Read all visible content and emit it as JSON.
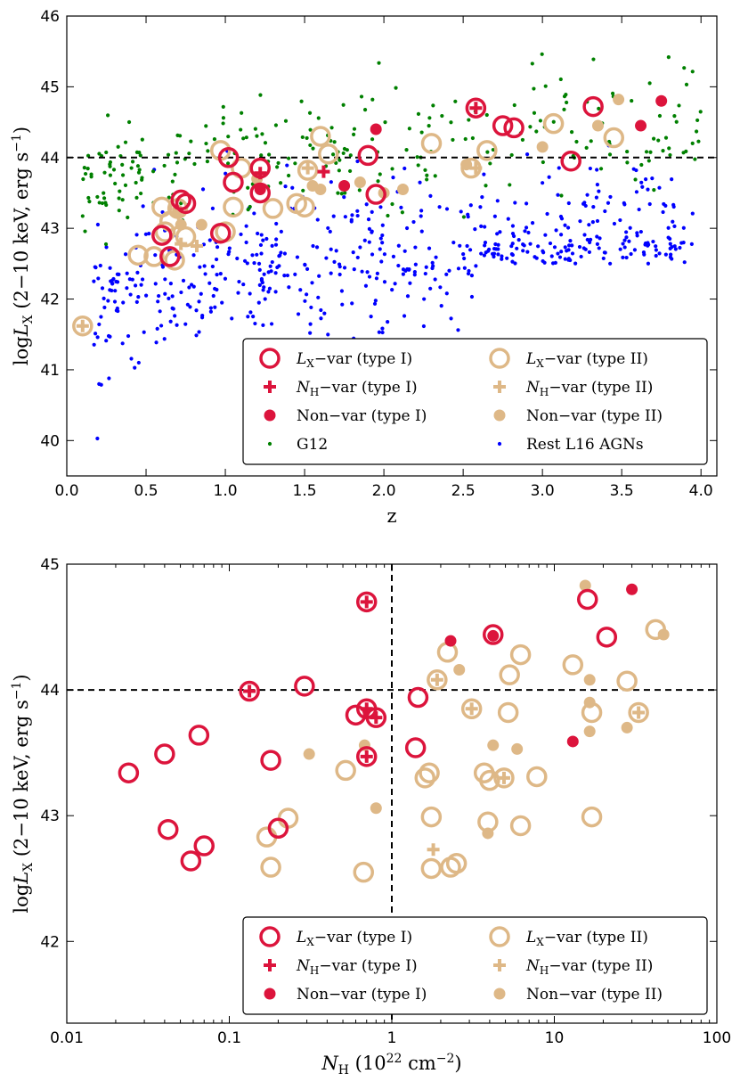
{
  "colors": {
    "type1": "#dc143c",
    "type2": "#deb887",
    "g12": "#008000",
    "rest": "#0000ff",
    "axis": "#000000"
  },
  "chart_data": [
    {
      "type": "scatter",
      "xlabel": "z",
      "ylabel_main": "log",
      "ylabel_var": "L",
      "ylabel_sub": "X",
      "ylabel_unit": "(2−10 keV, erg s",
      "ylabel_exp": "−1",
      "ylabel_close": ")",
      "xlim": [
        0.0,
        4.1
      ],
      "ylim": [
        39.5,
        46.0
      ],
      "xticks": [
        0.0,
        0.5,
        1.0,
        1.5,
        2.0,
        2.5,
        3.0,
        3.5,
        4.0
      ],
      "xtick_labels": [
        "0.0",
        "0.5",
        "1.0",
        "1.5",
        "2.0",
        "2.5",
        "3.0",
        "3.5",
        "4.0"
      ],
      "yticks": [
        40,
        41,
        42,
        43,
        44,
        45,
        46
      ],
      "ytick_labels": [
        "40",
        "41",
        "42",
        "43",
        "44",
        "45",
        "46"
      ],
      "hline": 44.0,
      "legend": [
        {
          "marker": "ring",
          "group": "type1",
          "pre": "",
          "var": "L",
          "sub": "X",
          "post": "−var (type I)"
        },
        {
          "marker": "ring",
          "group": "type2",
          "pre": "",
          "var": "L",
          "sub": "X",
          "post": "−var (type II)"
        },
        {
          "marker": "plus",
          "group": "type1",
          "pre": "",
          "var": "N",
          "sub": "H",
          "post": "−var (type I)"
        },
        {
          "marker": "plus",
          "group": "type2",
          "pre": "",
          "var": "N",
          "sub": "H",
          "post": "−var (type II)"
        },
        {
          "marker": "dot",
          "group": "type1",
          "pre": "Non−var (type I)",
          "var": "",
          "sub": "",
          "post": ""
        },
        {
          "marker": "dot",
          "group": "type2",
          "pre": "Non−var (type II)",
          "var": "",
          "sub": "",
          "post": ""
        },
        {
          "marker": "small",
          "group": "g12",
          "pre": "G12",
          "var": "",
          "sub": "",
          "post": ""
        },
        {
          "marker": "small",
          "group": "rest",
          "pre": "Rest L16 AGNs",
          "var": "",
          "sub": "",
          "post": ""
        }
      ],
      "series": {
        "type1_ring": [
          [
            0.6,
            42.9
          ],
          [
            0.65,
            42.6
          ],
          [
            0.72,
            43.4
          ],
          [
            0.75,
            43.35
          ],
          [
            0.97,
            42.93
          ],
          [
            1.02,
            44.0
          ],
          [
            1.05,
            43.65
          ],
          [
            1.22,
            43.5
          ],
          [
            1.22,
            43.85
          ],
          [
            1.9,
            44.03
          ],
          [
            1.95,
            43.48
          ],
          [
            2.58,
            44.7
          ],
          [
            2.75,
            44.45
          ],
          [
            2.82,
            44.42
          ],
          [
            3.18,
            43.95
          ],
          [
            3.32,
            44.72
          ]
        ],
        "type1_plus": [
          [
            1.22,
            43.78
          ],
          [
            1.62,
            43.8
          ],
          [
            2.58,
            44.7
          ]
        ],
        "type1_dot": [
          [
            1.22,
            43.55
          ],
          [
            1.75,
            43.6
          ],
          [
            1.95,
            44.4
          ],
          [
            3.62,
            44.45
          ],
          [
            3.75,
            44.8
          ]
        ],
        "type2_ring": [
          [
            0.1,
            41.62
          ],
          [
            0.45,
            42.62
          ],
          [
            0.55,
            42.6
          ],
          [
            0.6,
            43.3
          ],
          [
            0.62,
            42.95
          ],
          [
            0.65,
            43.1
          ],
          [
            0.68,
            42.55
          ],
          [
            0.7,
            43.28
          ],
          [
            0.75,
            42.88
          ],
          [
            0.97,
            44.1
          ],
          [
            1.0,
            42.95
          ],
          [
            1.05,
            43.3
          ],
          [
            1.1,
            43.85
          ],
          [
            1.3,
            43.28
          ],
          [
            1.45,
            43.35
          ],
          [
            1.5,
            43.3
          ],
          [
            1.52,
            43.82
          ],
          [
            1.6,
            44.3
          ],
          [
            1.65,
            44.05
          ],
          [
            2.3,
            44.2
          ],
          [
            2.55,
            43.85
          ],
          [
            2.65,
            44.1
          ],
          [
            3.07,
            44.48
          ],
          [
            3.45,
            44.28
          ]
        ],
        "type2_plus": [
          [
            0.1,
            41.62
          ],
          [
            0.72,
            42.78
          ],
          [
            0.82,
            42.75
          ],
          [
            1.52,
            43.85
          ],
          [
            2.58,
            43.85
          ]
        ],
        "type2_dot": [
          [
            0.7,
            43.25
          ],
          [
            0.72,
            43.05
          ],
          [
            0.85,
            43.05
          ],
          [
            1.2,
            43.7
          ],
          [
            1.55,
            43.6
          ],
          [
            1.6,
            43.55
          ],
          [
            1.85,
            43.65
          ],
          [
            2.0,
            43.5
          ],
          [
            2.12,
            43.55
          ],
          [
            2.52,
            43.9
          ],
          [
            3.0,
            44.15
          ],
          [
            3.35,
            44.45
          ],
          [
            3.48,
            44.82
          ]
        ],
        "g12_count": 260,
        "rest_count": 560
      }
    },
    {
      "type": "scatter",
      "xlabel_var": "N",
      "xlabel_sub": "H",
      "xlabel_unit": "(10",
      "xlabel_exp": "22",
      "xlabel_unit2": " cm",
      "xlabel_exp2": "−2",
      "xlabel_close": ")",
      "ylabel_main": "log",
      "ylabel_var": "L",
      "ylabel_sub": "X",
      "ylabel_unit": "(2−10 keV, erg s",
      "ylabel_exp": "−1",
      "ylabel_close": ")",
      "xscale": "log",
      "xlim": [
        0.01,
        100
      ],
      "ylim": [
        41.35,
        45.0
      ],
      "xticks": [
        0.01,
        0.1,
        1,
        10,
        100
      ],
      "xtick_labels": [
        "0.01",
        "0.1",
        "1",
        "10",
        "100"
      ],
      "yticks": [
        42,
        43,
        44,
        45
      ],
      "ytick_labels": [
        "42",
        "43",
        "44",
        "45"
      ],
      "hline": 44.0,
      "vline": 1.0,
      "legend": [
        {
          "marker": "ring",
          "group": "type1",
          "pre": "",
          "var": "L",
          "sub": "X",
          "post": "−var (type I)"
        },
        {
          "marker": "ring",
          "group": "type2",
          "pre": "",
          "var": "L",
          "sub": "X",
          "post": "−var (type II)"
        },
        {
          "marker": "plus",
          "group": "type1",
          "pre": "",
          "var": "N",
          "sub": "H",
          "post": "−var (type I)"
        },
        {
          "marker": "plus",
          "group": "type2",
          "pre": "",
          "var": "N",
          "sub": "H",
          "post": "−var (type II)"
        },
        {
          "marker": "dot",
          "group": "type1",
          "pre": "Non−var (type I)",
          "var": "",
          "sub": "",
          "post": ""
        },
        {
          "marker": "dot",
          "group": "type2",
          "pre": "Non−var (type II)",
          "var": "",
          "sub": "",
          "post": ""
        }
      ],
      "series": {
        "type1_ring": [
          [
            0.024,
            43.34
          ],
          [
            0.04,
            43.49
          ],
          [
            0.042,
            42.89
          ],
          [
            0.058,
            42.64
          ],
          [
            0.065,
            43.64
          ],
          [
            0.07,
            42.76
          ],
          [
            0.133,
            43.99
          ],
          [
            0.18,
            43.44
          ],
          [
            0.2,
            42.9
          ],
          [
            0.29,
            44.03
          ],
          [
            0.6,
            43.8
          ],
          [
            0.7,
            43.85
          ],
          [
            0.7,
            43.47
          ],
          [
            0.7,
            44.7
          ],
          [
            0.8,
            43.78
          ],
          [
            1.4,
            43.54
          ],
          [
            1.45,
            43.94
          ],
          [
            4.2,
            44.44
          ],
          [
            16,
            44.72
          ],
          [
            21,
            44.42
          ]
        ],
        "type1_plus": [
          [
            0.133,
            43.99
          ],
          [
            0.7,
            44.7
          ],
          [
            0.7,
            43.85
          ],
          [
            0.7,
            43.47
          ],
          [
            0.8,
            43.78
          ]
        ],
        "type1_dot": [
          [
            2.3,
            44.39
          ],
          [
            4.2,
            44.43
          ],
          [
            13,
            43.59
          ],
          [
            30,
            44.8
          ]
        ],
        "type2_ring": [
          [
            0.17,
            42.83
          ],
          [
            0.18,
            42.59
          ],
          [
            0.23,
            42.98
          ],
          [
            0.52,
            43.36
          ],
          [
            0.67,
            42.55
          ],
          [
            1.6,
            43.3
          ],
          [
            1.7,
            43.34
          ],
          [
            1.75,
            42.99
          ],
          [
            1.75,
            42.58
          ],
          [
            1.9,
            44.08
          ],
          [
            2.2,
            44.3
          ],
          [
            2.3,
            42.59
          ],
          [
            2.5,
            42.62
          ],
          [
            3.1,
            43.85
          ],
          [
            3.7,
            43.34
          ],
          [
            3.9,
            42.95
          ],
          [
            4.0,
            43.28
          ],
          [
            4.9,
            43.3
          ],
          [
            5.2,
            43.82
          ],
          [
            5.3,
            44.12
          ],
          [
            6.2,
            44.28
          ],
          [
            6.2,
            42.92
          ],
          [
            7.8,
            43.31
          ],
          [
            13,
            44.2
          ],
          [
            17,
            43.82
          ],
          [
            17,
            42.99
          ],
          [
            28,
            44.07
          ],
          [
            33,
            43.82
          ],
          [
            42,
            44.48
          ]
        ],
        "type2_plus": [
          [
            1.8,
            42.73
          ],
          [
            1.9,
            44.08
          ],
          [
            3.1,
            43.85
          ],
          [
            4.9,
            43.3
          ],
          [
            33,
            43.82
          ]
        ],
        "type2_dot": [
          [
            0.31,
            43.49
          ],
          [
            0.68,
            43.56
          ],
          [
            0.8,
            43.06
          ],
          [
            2.6,
            44.16
          ],
          [
            3.9,
            42.86
          ],
          [
            4.2,
            43.56
          ],
          [
            5.9,
            43.53
          ],
          [
            15.5,
            44.83
          ],
          [
            16.5,
            44.08
          ],
          [
            16.5,
            43.9
          ],
          [
            16.5,
            43.67
          ],
          [
            28,
            43.7
          ],
          [
            47,
            44.44
          ]
        ]
      }
    }
  ]
}
